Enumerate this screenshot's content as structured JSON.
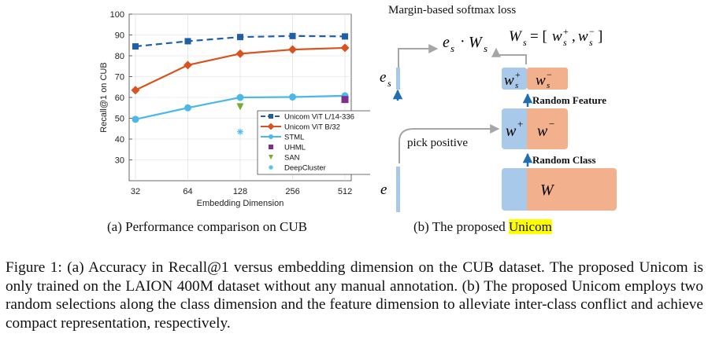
{
  "chart_data": {
    "type": "line",
    "xlabel": "Embedding Dimension",
    "ylabel": "Recall@1 on CUB",
    "x": [
      32,
      64,
      128,
      256,
      512
    ],
    "x_scale": "log2",
    "ylim": [
      20,
      100
    ],
    "yticks": [
      30,
      40,
      50,
      60,
      70,
      80,
      90,
      100
    ],
    "grid": true,
    "legend_position": "center-right",
    "series": [
      {
        "name": "Unicom ViT L/14-336",
        "values": [
          84.5,
          87,
          89,
          89.5,
          89.3
        ],
        "color": "#1f5fa8",
        "style": "dashed",
        "marker": "square"
      },
      {
        "name": "Unicom ViT B/32",
        "values": [
          63.5,
          75.5,
          81,
          83,
          83.8
        ],
        "color": "#d9531e",
        "style": "solid",
        "marker": "diamond"
      },
      {
        "name": "STML",
        "values": [
          49.5,
          55,
          60,
          60.2,
          60.8
        ],
        "color": "#4cb8e8",
        "style": "solid",
        "marker": "circle"
      },
      {
        "name": "UHML",
        "points": [
          {
            "x": 512,
            "y": 59
          }
        ],
        "color": "#7e2f8e",
        "marker": "square"
      },
      {
        "name": "SAN",
        "points": [
          {
            "x": 128,
            "y": 55.5
          }
        ],
        "color": "#77ac30",
        "marker": "triangle-down"
      },
      {
        "name": "DeepCluster",
        "points": [
          {
            "x": 128,
            "y": 43.5
          }
        ],
        "color": "#4dbeee",
        "marker": "asterisk"
      }
    ]
  },
  "diagram": {
    "top_label": "Margin-based softmax loss",
    "product": "e_s · W_s",
    "ws_def": "W_s = [w_s⁺, w_s⁻]",
    "es_label": "e_s",
    "e_label": "e",
    "pick_positive": "pick positive",
    "random_feature": "Random Feature",
    "random_class": "Random Class",
    "ws_plus": "w_s⁺",
    "ws_minus": "w_s⁻",
    "w_plus": "w⁺",
    "w_minus": "w⁻",
    "W": "W",
    "colors": {
      "blue": "#a9c9ea",
      "orange": "#f2b08c",
      "arrow": "#1f6fb5",
      "grey": "#a6a6a6"
    }
  },
  "subcaptions": {
    "a": "(a) Performance comparison on CUB",
    "b_prefix": "(b) The proposed ",
    "b_highlight": "Unicom"
  },
  "caption": "Figure 1: (a) Accuracy in Recall@1 versus embedding dimension on the CUB dataset. The proposed Unicom is only trained on the LAION 400M dataset without any manual annotation. (b) The proposed Unicom employs two random selections along the class dimension and the feature dimension to alleviate inter-class conflict and achieve compact representation, respectively."
}
